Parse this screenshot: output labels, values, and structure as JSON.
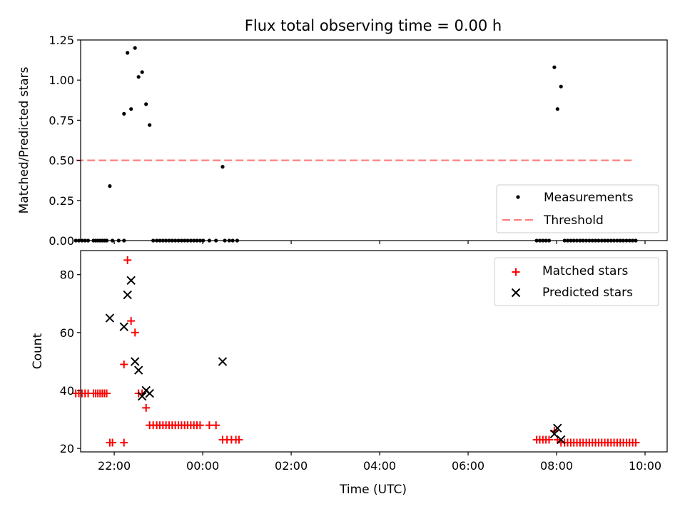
{
  "title": "Flux total observing time = 0.00 h",
  "xlabel": "Time (UTC)",
  "colors": {
    "measurement": "#000000",
    "threshold": "#ff7f7f",
    "matched": "#ff0000",
    "predicted": "#000000"
  },
  "chart_data": [
    {
      "type": "scatter",
      "title": "Flux total observing time = 0.00 h",
      "xlabel": "",
      "ylabel": "Matched/Predicted stars",
      "x_unit": "hours since 00:00 UTC",
      "xlim": [
        -2.76,
        10.5
      ],
      "ylim": [
        0.0,
        1.25
      ],
      "yticks": [
        0.0,
        0.25,
        0.5,
        0.75,
        1.0,
        1.25
      ],
      "ytick_labels": [
        "0.00",
        "0.25",
        "0.50",
        "0.75",
        "1.00",
        "1.25"
      ],
      "legend": {
        "placement": "lower-right",
        "entries": [
          "Measurements",
          "Threshold"
        ]
      },
      "threshold": {
        "name": "Threshold",
        "value": 0.5,
        "x_range": [
          -2.87,
          9.77
        ],
        "style": "dashed"
      },
      "series": [
        {
          "name": "Measurements",
          "points": [
            [
              -2.87,
              0
            ],
            [
              -2.8,
              0
            ],
            [
              -2.73,
              0
            ],
            [
              -2.66,
              0
            ],
            [
              -2.59,
              0
            ],
            [
              -2.47,
              0
            ],
            [
              -2.42,
              0
            ],
            [
              -2.37,
              0
            ],
            [
              -2.32,
              0
            ],
            [
              -2.27,
              0
            ],
            [
              -2.22,
              0
            ],
            [
              -2.17,
              0
            ],
            [
              -2.1,
              0.34
            ],
            [
              -2.04,
              0
            ],
            [
              -1.9,
              0
            ],
            [
              -1.78,
              0
            ],
            [
              -1.78,
              0.79
            ],
            [
              -1.7,
              1.17
            ],
            [
              -1.62,
              0.82
            ],
            [
              -1.53,
              1.2
            ],
            [
              -1.45,
              1.02
            ],
            [
              -1.37,
              1.05
            ],
            [
              -1.28,
              0.85
            ],
            [
              -1.2,
              0.72
            ],
            [
              -1.12,
              0
            ],
            [
              -1.04,
              0
            ],
            [
              -0.97,
              0
            ],
            [
              -0.9,
              0
            ],
            [
              -0.83,
              0
            ],
            [
              -0.76,
              0
            ],
            [
              -0.69,
              0
            ],
            [
              -0.62,
              0
            ],
            [
              -0.55,
              0
            ],
            [
              -0.48,
              0
            ],
            [
              -0.41,
              0
            ],
            [
              -0.34,
              0
            ],
            [
              -0.27,
              0
            ],
            [
              -0.2,
              0
            ],
            [
              -0.13,
              0
            ],
            [
              -0.06,
              0
            ],
            [
              0.01,
              0
            ],
            [
              0.15,
              0
            ],
            [
              0.3,
              0
            ],
            [
              0.45,
              0.46
            ],
            [
              0.5,
              0
            ],
            [
              0.6,
              0
            ],
            [
              0.68,
              0
            ],
            [
              0.78,
              0
            ],
            [
              7.55,
              0
            ],
            [
              7.62,
              0
            ],
            [
              7.69,
              0
            ],
            [
              7.76,
              0
            ],
            [
              7.83,
              0
            ],
            [
              7.95,
              1.08
            ],
            [
              8.02,
              0.82
            ],
            [
              8.1,
              0.96
            ],
            [
              8.18,
              0
            ],
            [
              8.25,
              0
            ],
            [
              8.32,
              0
            ],
            [
              8.39,
              0
            ],
            [
              8.46,
              0
            ],
            [
              8.53,
              0
            ],
            [
              8.6,
              0
            ],
            [
              8.67,
              0
            ],
            [
              8.74,
              0
            ],
            [
              8.81,
              0
            ],
            [
              8.88,
              0
            ],
            [
              8.95,
              0
            ],
            [
              9.02,
              0
            ],
            [
              9.09,
              0
            ],
            [
              9.16,
              0
            ],
            [
              9.23,
              0
            ],
            [
              9.3,
              0
            ],
            [
              9.37,
              0
            ],
            [
              9.44,
              0
            ],
            [
              9.51,
              0
            ],
            [
              9.58,
              0
            ],
            [
              9.65,
              0
            ],
            [
              9.72,
              0
            ],
            [
              9.79,
              0
            ]
          ]
        }
      ]
    },
    {
      "type": "scatter",
      "title": "",
      "xlabel": "Time (UTC)",
      "ylabel": "Count",
      "x_unit": "hours since 00:00 UTC",
      "xlim": [
        -2.76,
        10.5
      ],
      "ylim": [
        18.8,
        88.3
      ],
      "yticks": [
        20,
        40,
        60,
        80
      ],
      "ytick_labels": [
        "20",
        "40",
        "60",
        "80"
      ],
      "xticks": [
        -2,
        0,
        2,
        4,
        6,
        8,
        10
      ],
      "xtick_labels": [
        "22:00",
        "00:00",
        "02:00",
        "04:00",
        "06:00",
        "08:00",
        "10:00"
      ],
      "legend": {
        "placement": "top-right",
        "entries": [
          "Matched stars",
          "Predicted stars"
        ]
      },
      "series": [
        {
          "name": "Matched stars",
          "marker": "plus",
          "points": [
            [
              -2.87,
              39
            ],
            [
              -2.8,
              39
            ],
            [
              -2.73,
              39
            ],
            [
              -2.66,
              39
            ],
            [
              -2.59,
              39
            ],
            [
              -2.47,
              39
            ],
            [
              -2.42,
              39
            ],
            [
              -2.37,
              39
            ],
            [
              -2.32,
              39
            ],
            [
              -2.27,
              39
            ],
            [
              -2.22,
              39
            ],
            [
              -2.17,
              39
            ],
            [
              -2.1,
              22
            ],
            [
              -2.04,
              22
            ],
            [
              -1.78,
              22
            ],
            [
              -1.78,
              49
            ],
            [
              -1.7,
              85
            ],
            [
              -1.62,
              64
            ],
            [
              -1.53,
              60
            ],
            [
              -1.45,
              39
            ],
            [
              -1.37,
              39
            ],
            [
              -1.28,
              34
            ],
            [
              -1.2,
              28
            ],
            [
              -1.12,
              28
            ],
            [
              -1.04,
              28
            ],
            [
              -0.97,
              28
            ],
            [
              -0.9,
              28
            ],
            [
              -0.83,
              28
            ],
            [
              -0.76,
              28
            ],
            [
              -0.69,
              28
            ],
            [
              -0.62,
              28
            ],
            [
              -0.55,
              28
            ],
            [
              -0.48,
              28
            ],
            [
              -0.41,
              28
            ],
            [
              -0.34,
              28
            ],
            [
              -0.27,
              28
            ],
            [
              -0.2,
              28
            ],
            [
              -0.13,
              28
            ],
            [
              -0.06,
              28
            ],
            [
              0.15,
              28
            ],
            [
              0.3,
              28
            ],
            [
              0.45,
              23
            ],
            [
              0.55,
              23
            ],
            [
              0.65,
              23
            ],
            [
              0.75,
              23
            ],
            [
              0.82,
              23
            ],
            [
              7.55,
              23
            ],
            [
              7.62,
              23
            ],
            [
              7.69,
              23
            ],
            [
              7.76,
              23
            ],
            [
              7.83,
              23
            ],
            [
              7.95,
              26
            ],
            [
              8.02,
              23
            ],
            [
              8.1,
              22
            ],
            [
              8.18,
              22
            ],
            [
              8.25,
              22
            ],
            [
              8.32,
              22
            ],
            [
              8.39,
              22
            ],
            [
              8.46,
              22
            ],
            [
              8.53,
              22
            ],
            [
              8.6,
              22
            ],
            [
              8.67,
              22
            ],
            [
              8.74,
              22
            ],
            [
              8.81,
              22
            ],
            [
              8.88,
              22
            ],
            [
              8.95,
              22
            ],
            [
              9.02,
              22
            ],
            [
              9.09,
              22
            ],
            [
              9.16,
              22
            ],
            [
              9.23,
              22
            ],
            [
              9.3,
              22
            ],
            [
              9.37,
              22
            ],
            [
              9.44,
              22
            ],
            [
              9.51,
              22
            ],
            [
              9.58,
              22
            ],
            [
              9.65,
              22
            ],
            [
              9.72,
              22
            ],
            [
              9.79,
              22
            ]
          ]
        },
        {
          "name": "Predicted stars",
          "marker": "x",
          "points": [
            [
              -2.1,
              65
            ],
            [
              -1.78,
              62
            ],
            [
              -1.7,
              73
            ],
            [
              -1.62,
              78
            ],
            [
              -1.53,
              50
            ],
            [
              -1.45,
              47
            ],
            [
              -1.37,
              38
            ],
            [
              -1.28,
              40
            ],
            [
              -1.2,
              39
            ],
            [
              0.45,
              50
            ],
            [
              7.95,
              25
            ],
            [
              8.02,
              27
            ],
            [
              8.1,
              23
            ]
          ]
        }
      ]
    }
  ]
}
